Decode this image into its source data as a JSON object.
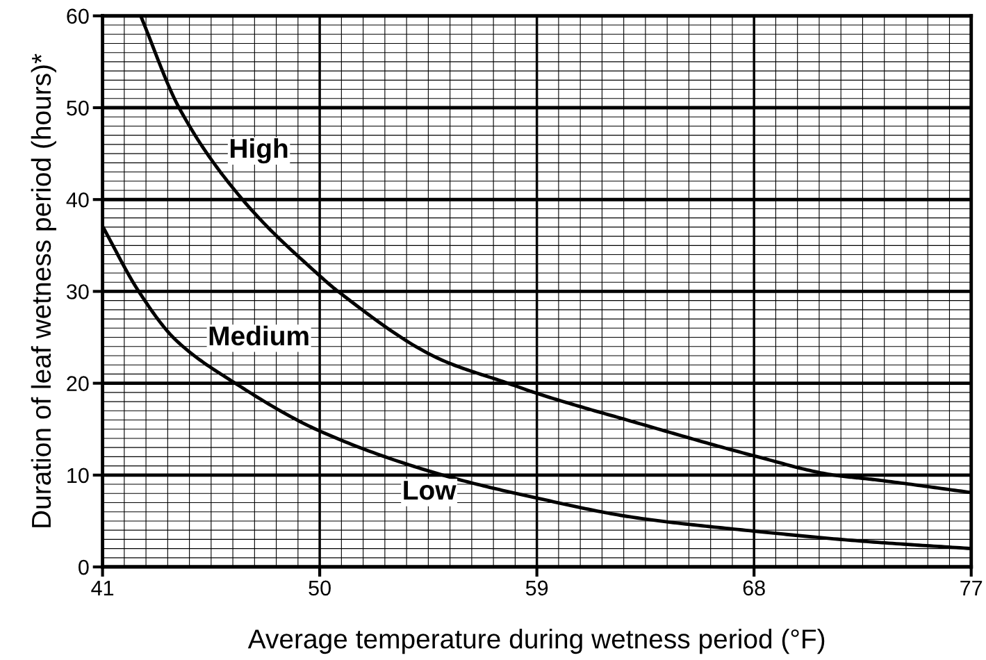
{
  "chart_data": {
    "type": "line",
    "xlabel": "Average temperature during wetness period (°F)",
    "ylabel": "Duration of leaf wetness period (hours)*",
    "xlim": [
      41,
      77
    ],
    "ylim": [
      0,
      60
    ],
    "xticks": [
      41,
      50,
      59,
      68,
      77
    ],
    "yticks": [
      0,
      10,
      20,
      30,
      40,
      50,
      60
    ],
    "grid": true,
    "marker": "none",
    "line_style": "solid",
    "series": [
      {
        "color": "#000000",
        "x": [
          42.58,
          44.17,
          46.8,
          50,
          50.76,
          55,
          57.8,
          59,
          63,
          68,
          71.3,
          73,
          77
        ],
        "values": [
          60,
          50,
          40,
          31.7,
          30,
          22.6,
          20,
          18.9,
          15.8,
          12.1,
          10,
          9.5,
          8.1
        ]
      },
      {
        "color": "#000000",
        "x": [
          41,
          42.5,
          44,
          46.5,
          50,
          55.1,
          59,
          63,
          68,
          72.5,
          77
        ],
        "values": [
          37.1,
          30,
          24.8,
          20,
          14.8,
          10,
          7.5,
          5.4,
          3.9,
          2.8,
          2.0
        ]
      }
    ],
    "annotations": [
      "High",
      "Medium",
      "Low"
    ]
  }
}
